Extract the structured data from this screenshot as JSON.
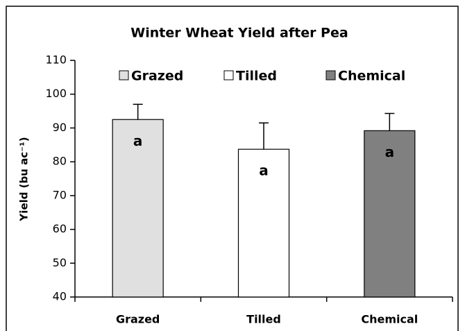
{
  "chart_data": {
    "type": "bar",
    "title": "Winter Wheat Yield after Pea",
    "y_label": "Yield (bu ac⁻¹)",
    "categories": [
      "Grazed",
      "Tilled",
      "Chemical"
    ],
    "values": [
      92.5,
      83.7,
      89.2
    ],
    "errors": [
      4.5,
      7.8,
      5.1
    ],
    "letters": [
      "a",
      "a",
      "a"
    ],
    "colors": [
      "#e0e0e0",
      "#ffffff",
      "#808080"
    ],
    "ylim": [
      40,
      110
    ],
    "yticks": [
      40,
      50,
      60,
      70,
      80,
      90,
      100,
      110
    ],
    "legend": "top"
  }
}
